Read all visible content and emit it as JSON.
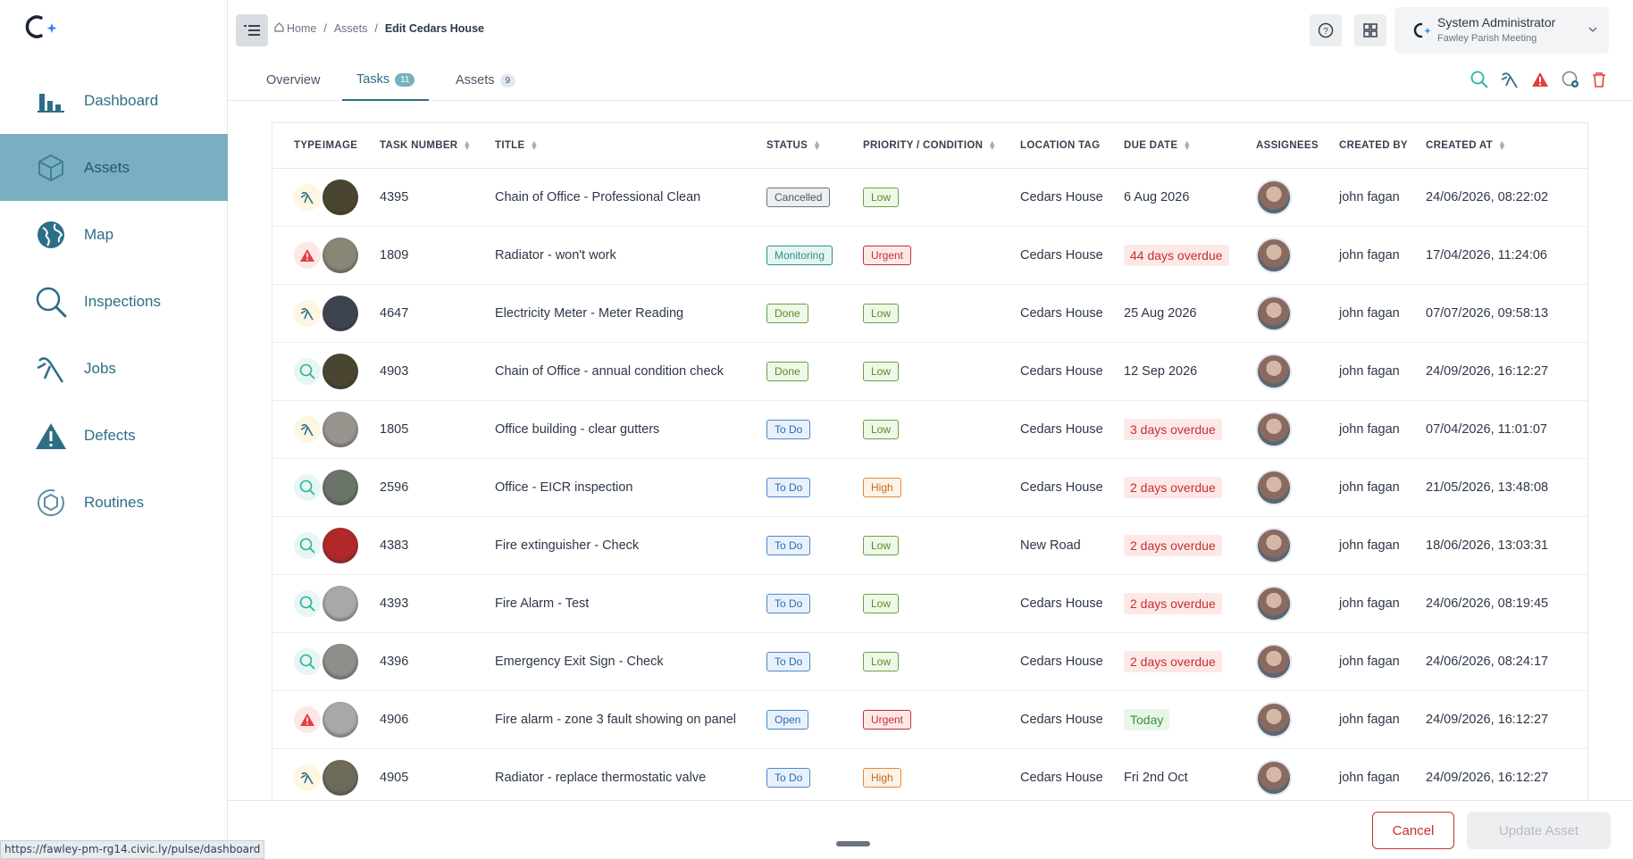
{
  "sidebar": {
    "items": [
      {
        "label": "Dashboard",
        "icon": "bar-chart-icon",
        "active": false
      },
      {
        "label": "Assets",
        "icon": "cube-icon",
        "active": true
      },
      {
        "label": "Map",
        "icon": "globe-icon",
        "active": false
      },
      {
        "label": "Inspections",
        "icon": "magnifier-icon",
        "active": false
      },
      {
        "label": "Jobs",
        "icon": "jobs-tool-icon",
        "active": false
      },
      {
        "label": "Defects",
        "icon": "warning-icon",
        "active": false
      },
      {
        "label": "Routines",
        "icon": "routine-cycle-icon",
        "active": false
      }
    ]
  },
  "header": {
    "breadcrumb": {
      "home": "Home",
      "assets": "Assets",
      "current": "Edit Cedars House"
    },
    "user": {
      "name": "System Administrator",
      "org": "Fawley Parish Meeting"
    }
  },
  "tabs": [
    {
      "label": "Overview",
      "count": ""
    },
    {
      "label": "Tasks",
      "count": "11"
    },
    {
      "label": "Assets",
      "count": "9"
    }
  ],
  "table": {
    "columns": [
      "TYPE",
      "IMAGE",
      "TASK NUMBER",
      "TITLE",
      "STATUS",
      "PRIORITY / CONDITION",
      "LOCATION TAG",
      "DUE DATE",
      "ASSIGNEES",
      "CREATED BY",
      "CREATED AT"
    ],
    "rows": [
      {
        "type": "job",
        "thumb": "#4a4530",
        "number": "4395",
        "title": "Chain of Office - Professional Clean",
        "status": "Cancelled",
        "priority": "Low",
        "location": "Cedars House",
        "due": "6 Aug 2026",
        "due_style": "plain",
        "created_by": "john fagan",
        "created_at": "24/06/2026, 08:22:02"
      },
      {
        "type": "defect",
        "thumb": "#8a8676",
        "number": "1809",
        "title": "Radiator - won't work",
        "status": "Monitoring",
        "priority": "Urgent",
        "location": "Cedars House",
        "due": "44 days overdue",
        "due_style": "overdue",
        "created_by": "john fagan",
        "created_at": "17/04/2026, 11:24:06"
      },
      {
        "type": "job",
        "thumb": "#3e4350",
        "number": "4647",
        "title": "Electricity Meter - Meter Reading",
        "status": "Done",
        "priority": "Low",
        "location": "Cedars House",
        "due": "25 Aug 2026",
        "due_style": "plain",
        "created_by": "john fagan",
        "created_at": "07/07/2026, 09:58:13"
      },
      {
        "type": "inspection",
        "thumb": "#4a4530",
        "number": "4903",
        "title": "Chain of Office - annual condition check",
        "status": "Done",
        "priority": "Low",
        "location": "Cedars House",
        "due": "12 Sep 2026",
        "due_style": "plain",
        "created_by": "john fagan",
        "created_at": "24/09/2026, 16:12:27"
      },
      {
        "type": "job",
        "thumb": "#9a948e",
        "number": "1805",
        "title": "Office building - clear gutters",
        "status": "To Do",
        "priority": "Low",
        "location": "Cedars House",
        "due": "3 days overdue",
        "due_style": "overdue",
        "created_by": "john fagan",
        "created_at": "07/04/2026, 11:01:07"
      },
      {
        "type": "inspection",
        "thumb": "#6a7468",
        "number": "2596",
        "title": "Office - EICR inspection",
        "status": "To Do",
        "priority": "High",
        "location": "Cedars House",
        "due": "2 days overdue",
        "due_style": "overdue",
        "created_by": "john fagan",
        "created_at": "21/05/2026, 13:48:08"
      },
      {
        "type": "inspection",
        "thumb": "#b02828",
        "number": "4383",
        "title": "Fire extinguisher - Check",
        "status": "To Do",
        "priority": "Low",
        "location": "New Road",
        "due": "2 days overdue",
        "due_style": "overdue",
        "created_by": "john fagan",
        "created_at": "18/06/2026, 13:03:31"
      },
      {
        "type": "inspection",
        "thumb": "#a8a8a8",
        "number": "4393",
        "title": "Fire Alarm - Test",
        "status": "To Do",
        "priority": "Low",
        "location": "Cedars House",
        "due": "2 days overdue",
        "due_style": "overdue",
        "created_by": "john fagan",
        "created_at": "24/06/2026, 08:19:45"
      },
      {
        "type": "inspection",
        "thumb": "#8c9088",
        "number": "4396",
        "title": "Emergency Exit Sign - Check",
        "status": "To Do",
        "priority": "Low",
        "location": "Cedars House",
        "due": "2 days overdue",
        "due_style": "overdue",
        "created_by": "john fagan",
        "created_at": "24/06/2026, 08:24:17"
      },
      {
        "type": "defect",
        "thumb": "#a8a8a8",
        "number": "4906",
        "title": "Fire alarm - zone 3 fault showing on panel",
        "status": "Open",
        "priority": "Urgent",
        "location": "Cedars House",
        "due": "Today",
        "due_style": "today",
        "created_by": "john fagan",
        "created_at": "24/09/2026, 16:12:27"
      },
      {
        "type": "job",
        "thumb": "#6e6a5a",
        "number": "4905",
        "title": "Radiator - replace thermostatic valve",
        "status": "To Do",
        "priority": "High",
        "location": "Cedars House",
        "due": "Fri 2nd Oct",
        "due_style": "plain",
        "created_by": "john fagan",
        "created_at": "24/09/2026, 16:12:27"
      }
    ]
  },
  "footer": {
    "cancel_label": "Cancel",
    "update_label": "Update Asset"
  },
  "status_url": "https://fawley-pm-rg14.civic.ly/pulse/dashboard",
  "colors": {
    "brand": "#2c6e86",
    "active_nav": "#79afc1",
    "danger": "#c53030"
  }
}
